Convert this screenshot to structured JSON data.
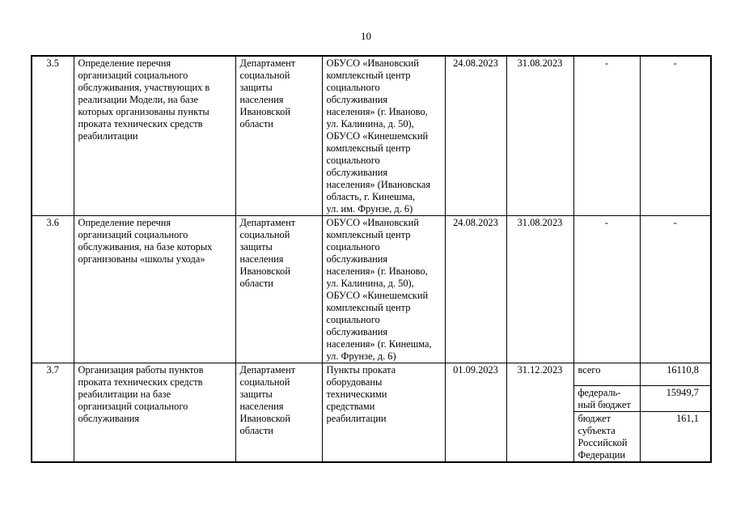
{
  "page_number": "10",
  "rows": [
    {
      "num": "3.5",
      "task": "Определение перечня\nорганизаций социального\nобслуживания, участвующих в\nреализации Модели, на базе\nкоторых организованы пункты\nпроката технических средств\nреабилитации",
      "responsible": "Департамент\nсоциальной\nзащиты\nнаселения\nИвановской\nобласти",
      "result": "ОБУСО «Ивановский\nкомплексный центр\nсоциального\nобслуживания\nнаселения» (г. Иваново,\nул. Калинина, д. 50),\nОБУСО «Кинешемский\nкомплексный центр\nсоциального\nобслуживания\nнаселения» (Ивановская\nобласть, г. Кинешма,\nул. им. Фрунзе, д. 6)",
      "start": "24.08.2023",
      "end": "31.08.2023",
      "source": "-",
      "amount": "-"
    },
    {
      "num": "3.6",
      "task": "Определение перечня\nорганизаций социального\nобслуживания, на базе которых\nорганизованы «школы ухода»",
      "responsible": "Департамент\nсоциальной\nзащиты\nнаселения\nИвановской\nобласти",
      "result": "ОБУСО «Ивановский\nкомплексный центр\nсоциального\nобслуживания\nнаселения» (г. Иваново,\nул. Калинина, д. 50),\nОБУСО «Кинешемский\nкомплексный центр\nсоциального\nобслуживания\nнаселения» (г. Кинешма,\nул. Фрунзе, д. 6)",
      "start": "24.08.2023",
      "end": "31.08.2023",
      "source": "-",
      "amount": "-"
    },
    {
      "num": "3.7",
      "task": "Организация работы пунктов\nпроката технических средств\nреабилитации на базе\nорганизаций социального\nобслуживания",
      "responsible": "Департамент\nсоциальной\nзащиты\nнаселения\nИвановской\nобласти",
      "result": "Пункты проката\nоборудованы\nтехническими\nсредствами\nреабилитации",
      "start": "01.09.2023",
      "end": "31.12.2023",
      "funding": [
        {
          "source": "всего",
          "amount": "16110,8"
        },
        {
          "source": "федераль-\nный бюджет",
          "amount": "15949,7"
        },
        {
          "source": "бюджет\nсубъекта\nРоссийской\nФедерации",
          "amount": "161,1"
        }
      ]
    }
  ]
}
